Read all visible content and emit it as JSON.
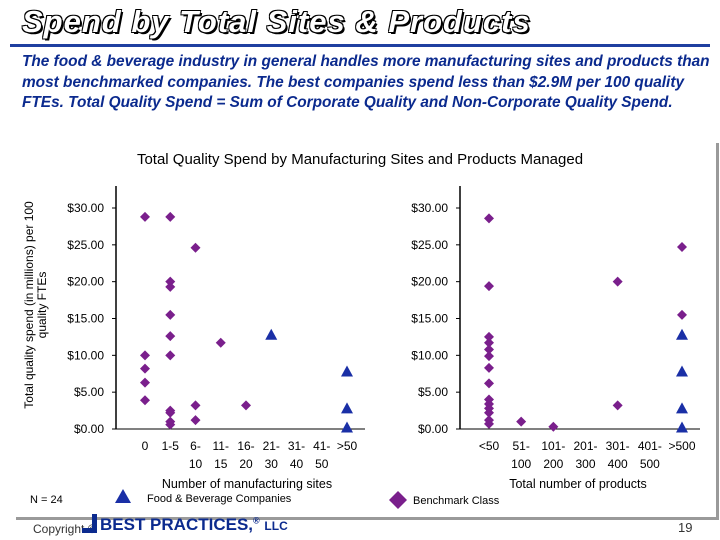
{
  "slide": {
    "title": "Spend by Total Sites & Products",
    "intro": "The food & beverage industry in general handles more manufacturing sites and products than most benchmarked companies. The best companies spend less than $2.9M per 100 quality FTEs. Total Quality Spend = Sum of Corporate Quality and Non-Corporate Quality Spend.",
    "n_label": "N = 24",
    "copyright": "Copyright ©",
    "brand": "BEST PRACTICES,",
    "brand_reg": "®",
    "brand_llc": "LLC",
    "page_number": "19"
  },
  "colors": {
    "title_rule": "#1f3fa0",
    "intro_text": "#0b2a8e",
    "food_beverage": "#1a2fa6",
    "benchmark": "#7a1f8c"
  },
  "legend": [
    {
      "name": "Food & Beverage Companies",
      "marker": "triangle",
      "color": "#1a2fa6"
    },
    {
      "name": "Benchmark Class",
      "marker": "diamond",
      "color": "#7a1f8c"
    }
  ],
  "chart_data": [
    {
      "type": "scatter",
      "title": "Total Quality Spend by Manufacturing Sites and Products Managed",
      "ylabel": "Total quality spend (in millions) per 100 quality FTEs",
      "xlabel": "Number of manufacturing sites",
      "categories": [
        "0",
        "1-5",
        "6-10",
        "11-15",
        "16-20",
        "21-30",
        "31-40",
        "41-50",
        ">50"
      ],
      "tick_labels": [
        {
          "top": "0",
          "bottom": ""
        },
        {
          "top": "1-5",
          "bottom": ""
        },
        {
          "top": "6-",
          "bottom": "10"
        },
        {
          "top": "11-",
          "bottom": "15"
        },
        {
          "top": "16-",
          "bottom": "20"
        },
        {
          "top": "21-",
          "bottom": "30"
        },
        {
          "top": "31-",
          "bottom": "40"
        },
        {
          "top": "41-",
          "bottom": "50"
        },
        {
          "top": ">50",
          "bottom": ""
        }
      ],
      "yticks": [
        "$0.00",
        "$5.00",
        "$10.00",
        "$15.00",
        "$20.00",
        "$25.00",
        "$30.00"
      ],
      "ylim": [
        0,
        30
      ],
      "series": [
        {
          "name": "Food & Beverage Companies",
          "marker": "triangle",
          "points": [
            {
              "x": "21-30",
              "y": 12.8
            },
            {
              "x": ">50",
              "y": 7.8
            },
            {
              "x": ">50",
              "y": 2.8
            },
            {
              "x": ">50",
              "y": 0.2
            }
          ]
        },
        {
          "name": "Benchmark Class",
          "marker": "diamond",
          "points": [
            {
              "x": "0",
              "y": 28.8
            },
            {
              "x": "0",
              "y": 10.0
            },
            {
              "x": "0",
              "y": 8.2
            },
            {
              "x": "0",
              "y": 6.3
            },
            {
              "x": "0",
              "y": 3.9
            },
            {
              "x": "1-5",
              "y": 28.8
            },
            {
              "x": "1-5",
              "y": 20.0
            },
            {
              "x": "1-5",
              "y": 19.3
            },
            {
              "x": "1-5",
              "y": 15.5
            },
            {
              "x": "1-5",
              "y": 12.6
            },
            {
              "x": "1-5",
              "y": 10.0
            },
            {
              "x": "1-5",
              "y": 2.5
            },
            {
              "x": "1-5",
              "y": 2.2
            },
            {
              "x": "1-5",
              "y": 1.0
            },
            {
              "x": "1-5",
              "y": 0.6
            },
            {
              "x": "6-10",
              "y": 24.6
            },
            {
              "x": "6-10",
              "y": 3.2
            },
            {
              "x": "6-10",
              "y": 1.2
            },
            {
              "x": "11-15",
              "y": 11.7
            },
            {
              "x": "16-20",
              "y": 3.2
            }
          ]
        }
      ]
    },
    {
      "type": "scatter",
      "xlabel": "Total number of products",
      "categories": [
        "<50",
        "51-100",
        "101-200",
        "201-300",
        "301-400",
        "401-500",
        ">500"
      ],
      "tick_labels": [
        {
          "top": "<50",
          "bottom": ""
        },
        {
          "top": "51-",
          "bottom": "100"
        },
        {
          "top": "101-",
          "bottom": "200"
        },
        {
          "top": "201-",
          "bottom": "300"
        },
        {
          "top": "301-",
          "bottom": "400"
        },
        {
          "top": "401-",
          "bottom": "500"
        },
        {
          "top": ">500",
          "bottom": ""
        }
      ],
      "yticks": [
        "$0.00",
        "$5.00",
        "$10.00",
        "$15.00",
        "$20.00",
        "$25.00",
        "$30.00"
      ],
      "ylim": [
        0,
        30
      ],
      "series": [
        {
          "name": "Food & Beverage Companies",
          "marker": "triangle",
          "points": [
            {
              "x": ">500",
              "y": 12.8
            },
            {
              "x": ">500",
              "y": 7.8
            },
            {
              "x": ">500",
              "y": 2.8
            },
            {
              "x": ">500",
              "y": 0.2
            }
          ]
        },
        {
          "name": "Benchmark Class",
          "marker": "diamond",
          "points": [
            {
              "x": "<50",
              "y": 28.6
            },
            {
              "x": "<50",
              "y": 19.4
            },
            {
              "x": "<50",
              "y": 12.5
            },
            {
              "x": "<50",
              "y": 11.7
            },
            {
              "x": "<50",
              "y": 10.8
            },
            {
              "x": "<50",
              "y": 9.9
            },
            {
              "x": "<50",
              "y": 8.3
            },
            {
              "x": "<50",
              "y": 6.2
            },
            {
              "x": "<50",
              "y": 4.0
            },
            {
              "x": "<50",
              "y": 3.4
            },
            {
              "x": "<50",
              "y": 2.8
            },
            {
              "x": "<50",
              "y": 2.2
            },
            {
              "x": "<50",
              "y": 1.2
            },
            {
              "x": "<50",
              "y": 0.7
            },
            {
              "x": "51-100",
              "y": 1.0
            },
            {
              "x": "101-200",
              "y": 0.3
            },
            {
              "x": "301-400",
              "y": 20.0
            },
            {
              "x": "301-400",
              "y": 3.2
            },
            {
              "x": ">500",
              "y": 24.7
            },
            {
              "x": ">500",
              "y": 15.5
            }
          ]
        }
      ]
    }
  ]
}
